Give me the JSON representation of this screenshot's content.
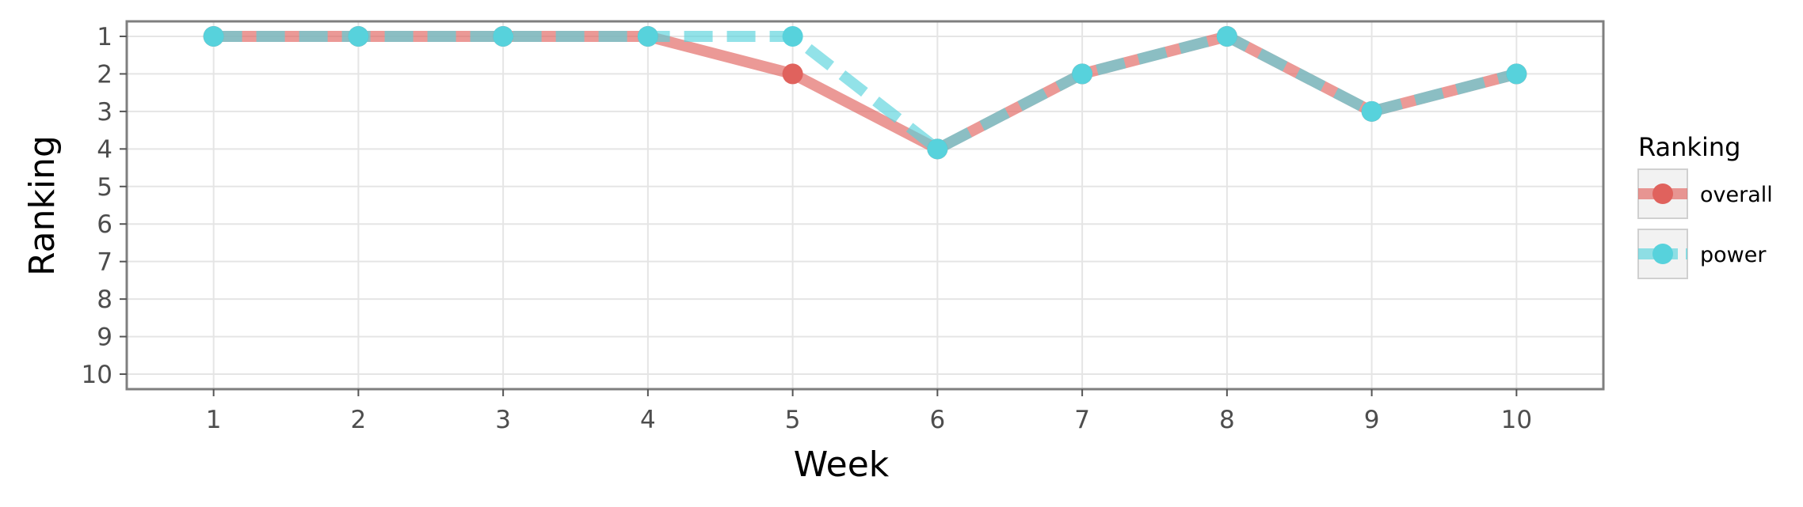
{
  "chart_data": {
    "type": "line",
    "title": "",
    "xlabel": "Week",
    "ylabel": "Ranking",
    "x": [
      1,
      2,
      3,
      4,
      5,
      6,
      7,
      8,
      9,
      10
    ],
    "x_tick_labels": [
      "1",
      "2",
      "3",
      "4",
      "5",
      "6",
      "7",
      "8",
      "9",
      "10"
    ],
    "y_tick_labels": [
      "1",
      "2",
      "3",
      "4",
      "5",
      "6",
      "7",
      "8",
      "9",
      "10"
    ],
    "xlim": [
      0.4,
      10.6
    ],
    "ylim": [
      10.4,
      0.6
    ],
    "y_reversed": true,
    "grid": true,
    "legend": {
      "title": "Ranking",
      "position": "right"
    },
    "series": [
      {
        "name": "overall",
        "values": [
          1,
          1,
          1,
          1,
          2,
          4,
          2,
          1,
          3,
          2
        ],
        "color": "#e0625d",
        "line_style": "solid"
      },
      {
        "name": "power",
        "values": [
          1,
          1,
          1,
          1,
          1,
          4,
          2,
          1,
          3,
          2
        ],
        "color": "#57d2dc",
        "line_style": "dashed"
      }
    ]
  }
}
